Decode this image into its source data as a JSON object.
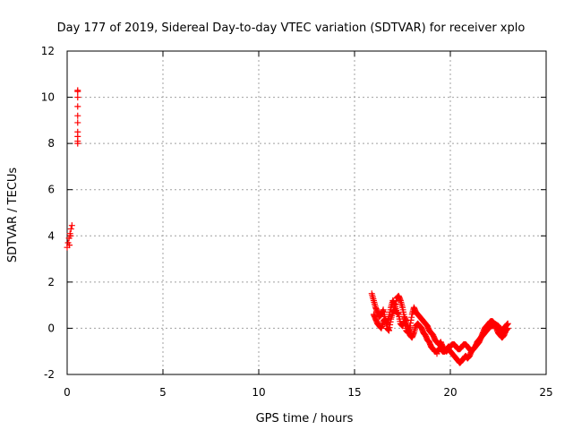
{
  "chart_data": {
    "type": "scatter",
    "title": "Day 177 of 2019, Sidereal Day-to-day VTEC variation (SDTVAR) for receiver xplo",
    "xlabel": "GPS time / hours",
    "ylabel": "SDTVAR / TECUs",
    "xlim": [
      0,
      25
    ],
    "ylim": [
      -2,
      12
    ],
    "x_ticks": [
      0,
      5,
      10,
      15,
      20,
      25
    ],
    "y_ticks": [
      -2,
      0,
      2,
      4,
      6,
      8,
      10,
      12
    ],
    "grid": true,
    "marker": "+",
    "colors": {
      "series": "#ff0000",
      "grid": "#a0a0a0",
      "axis": "#000000"
    },
    "series": [
      {
        "name": "SDTVAR",
        "segments": [
          {
            "x": [
              0.0,
              0.05,
              0.1,
              0.15,
              0.2,
              0.25,
              0.12,
              0.18
            ],
            "y": [
              3.5,
              3.7,
              3.9,
              4.1,
              4.3,
              4.45,
              3.6,
              4.0
            ]
          },
          {
            "x": [
              0.55,
              0.55,
              0.55,
              0.55,
              0.55,
              0.55,
              0.55,
              0.55,
              0.55,
              0.55
            ],
            "y": [
              10.3,
              10.25,
              10.0,
              9.6,
              9.2,
              8.9,
              8.5,
              8.3,
              8.1,
              8.0
            ]
          },
          {
            "x": [
              15.9,
              16.0,
              16.1,
              16.2,
              16.3,
              16.4,
              16.5,
              16.6,
              16.7,
              16.8,
              16.9,
              17.0,
              17.1,
              17.2,
              17.3,
              17.4,
              17.5,
              17.6,
              17.7,
              17.8,
              17.9,
              18.0,
              18.1,
              18.2,
              18.3,
              18.4,
              18.5,
              18.6,
              18.7,
              18.8,
              18.9,
              19.0,
              19.1,
              19.2,
              19.3,
              19.4,
              19.5,
              19.6,
              19.7,
              19.8,
              19.9,
              20.0,
              20.1,
              20.2,
              20.3,
              20.4,
              20.5,
              20.6,
              20.7,
              20.8,
              20.9,
              21.0,
              21.1,
              21.2,
              21.3,
              21.4,
              21.5,
              21.6,
              21.7,
              21.8,
              21.9,
              22.0,
              22.1,
              22.2,
              22.3,
              22.4,
              22.5,
              22.6,
              22.7,
              22.8,
              22.9,
              23.0
            ],
            "y": [
              1.5,
              1.2,
              0.9,
              0.7,
              0.5,
              0.6,
              0.8,
              0.4,
              0.2,
              0.5,
              0.9,
              1.2,
              1.0,
              0.7,
              0.6,
              0.2,
              0.1,
              0.3,
              -0.1,
              -0.2,
              0.1,
              0.6,
              0.9,
              0.7,
              0.6,
              0.5,
              0.4,
              0.3,
              0.2,
              0.1,
              -0.1,
              -0.2,
              -0.3,
              -0.5,
              -0.6,
              -0.7,
              -0.6,
              -0.8,
              -0.9,
              -1.0,
              -0.9,
              -1.0,
              -1.1,
              -1.2,
              -1.3,
              -1.4,
              -1.5,
              -1.4,
              -1.3,
              -1.2,
              -1.3,
              -1.2,
              -1.0,
              -0.9,
              -0.8,
              -0.6,
              -0.5,
              -0.4,
              -0.3,
              -0.2,
              -0.1,
              0.0,
              0.1,
              0.1,
              0.2,
              0.15,
              0.1,
              0.0,
              -0.1,
              0.0,
              0.1,
              0.2
            ]
          },
          {
            "x": [
              16.0,
              16.1,
              16.2,
              16.3,
              16.4,
              16.5,
              16.6,
              16.7,
              16.8,
              16.9,
              17.0,
              17.1,
              17.2,
              17.3,
              17.4,
              17.5,
              17.6,
              17.7,
              17.8,
              17.9,
              18.0,
              18.1,
              18.2,
              18.3,
              18.4,
              18.5,
              18.6,
              18.7,
              18.8,
              18.9,
              19.0,
              19.1,
              19.2,
              19.3,
              19.4,
              19.5,
              19.6,
              19.7,
              19.8,
              19.9,
              20.0,
              20.1,
              20.2,
              20.3,
              20.4,
              20.5,
              20.6,
              20.7,
              20.8,
              20.9,
              21.0,
              21.1,
              21.2,
              21.3,
              21.4,
              21.5,
              21.6,
              21.7,
              21.8,
              21.9,
              22.0,
              22.1,
              22.2,
              22.3,
              22.4,
              22.5,
              22.6,
              22.7,
              22.8,
              22.9,
              23.0
            ],
            "y": [
              0.6,
              0.4,
              0.2,
              0.1,
              0.0,
              0.3,
              0.4,
              0.0,
              -0.1,
              0.4,
              0.7,
              0.8,
              1.3,
              1.4,
              1.2,
              0.9,
              0.5,
              0.3,
              0.0,
              -0.3,
              -0.4,
              -0.2,
              0.1,
              0.2,
              0.1,
              0.0,
              -0.2,
              -0.3,
              -0.5,
              -0.6,
              -0.8,
              -0.9,
              -1.0,
              -1.0,
              -0.9,
              -0.9,
              -1.0,
              -1.0,
              -0.9,
              -0.8,
              -0.8,
              -0.7,
              -0.7,
              -0.8,
              -0.9,
              -0.9,
              -0.8,
              -0.7,
              -0.7,
              -0.8,
              -0.9,
              -1.0,
              -0.9,
              -0.8,
              -0.7,
              -0.6,
              -0.4,
              -0.2,
              0.0,
              0.1,
              0.2,
              0.3,
              0.3,
              0.2,
              0.0,
              -0.2,
              -0.3,
              -0.4,
              -0.3,
              -0.1,
              0.0
            ]
          },
          {
            "x": [
              19.0,
              19.1,
              19.2,
              19.3,
              19.4,
              19.5,
              19.6,
              19.7,
              19.8,
              19.9,
              20.0
            ],
            "y": [
              -0.8,
              -0.9,
              -1.0,
              -1.1,
              -1.0,
              -0.9,
              -0.9,
              -1.0,
              -0.9,
              -0.8,
              -0.8
            ]
          }
        ]
      }
    ]
  }
}
